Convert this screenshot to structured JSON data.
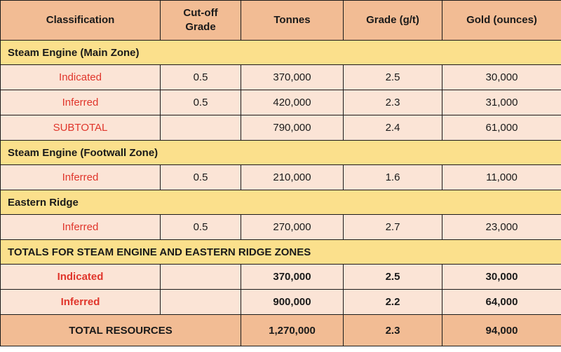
{
  "headers": [
    "Classification",
    "Cut-off Grade",
    "Tonnes",
    "Grade (g/t)",
    "Gold (ounces)"
  ],
  "sections": [
    {
      "title": "Steam Engine (Main Zone)",
      "bold": false,
      "rows": [
        {
          "classification": "Indicated",
          "cutoff": "0.5",
          "tonnes": "370,000",
          "grade": "2.5",
          "gold": "30,000"
        },
        {
          "classification": "Inferred",
          "cutoff": "0.5",
          "tonnes": "420,000",
          "grade": "2.3",
          "gold": "31,000"
        },
        {
          "classification": "SUBTOTAL",
          "cutoff": "",
          "tonnes": "790,000",
          "grade": "2.4",
          "gold": "61,000"
        }
      ]
    },
    {
      "title": "Steam Engine (Footwall Zone)",
      "bold": false,
      "rows": [
        {
          "classification": "Inferred",
          "cutoff": "0.5",
          "tonnes": "210,000",
          "grade": "1.6",
          "gold": "11,000"
        }
      ]
    },
    {
      "title": "Eastern Ridge",
      "bold": false,
      "rows": [
        {
          "classification": "Inferred",
          "cutoff": "0.5",
          "tonnes": "270,000",
          "grade": "2.7",
          "gold": "23,000"
        }
      ]
    },
    {
      "title": "TOTALS FOR STEAM ENGINE AND EASTERN RIDGE ZONES",
      "bold": true,
      "rows": [
        {
          "classification": "Indicated",
          "cutoff": "",
          "tonnes": "370,000",
          "grade": "2.5",
          "gold": "30,000"
        },
        {
          "classification": "Inferred",
          "cutoff": "",
          "tonnes": "900,000",
          "grade": "2.2",
          "gold": "64,000"
        }
      ]
    }
  ],
  "total": {
    "label": "TOTAL RESOURCES",
    "tonnes": "1,270,000",
    "grade": "2.3",
    "gold": "94,000"
  },
  "colors": {
    "header_bg": "#f2bc94",
    "section_bg": "#fbe08c",
    "row_bg": "#fbe4d6",
    "classification_text": "#e0352b"
  }
}
